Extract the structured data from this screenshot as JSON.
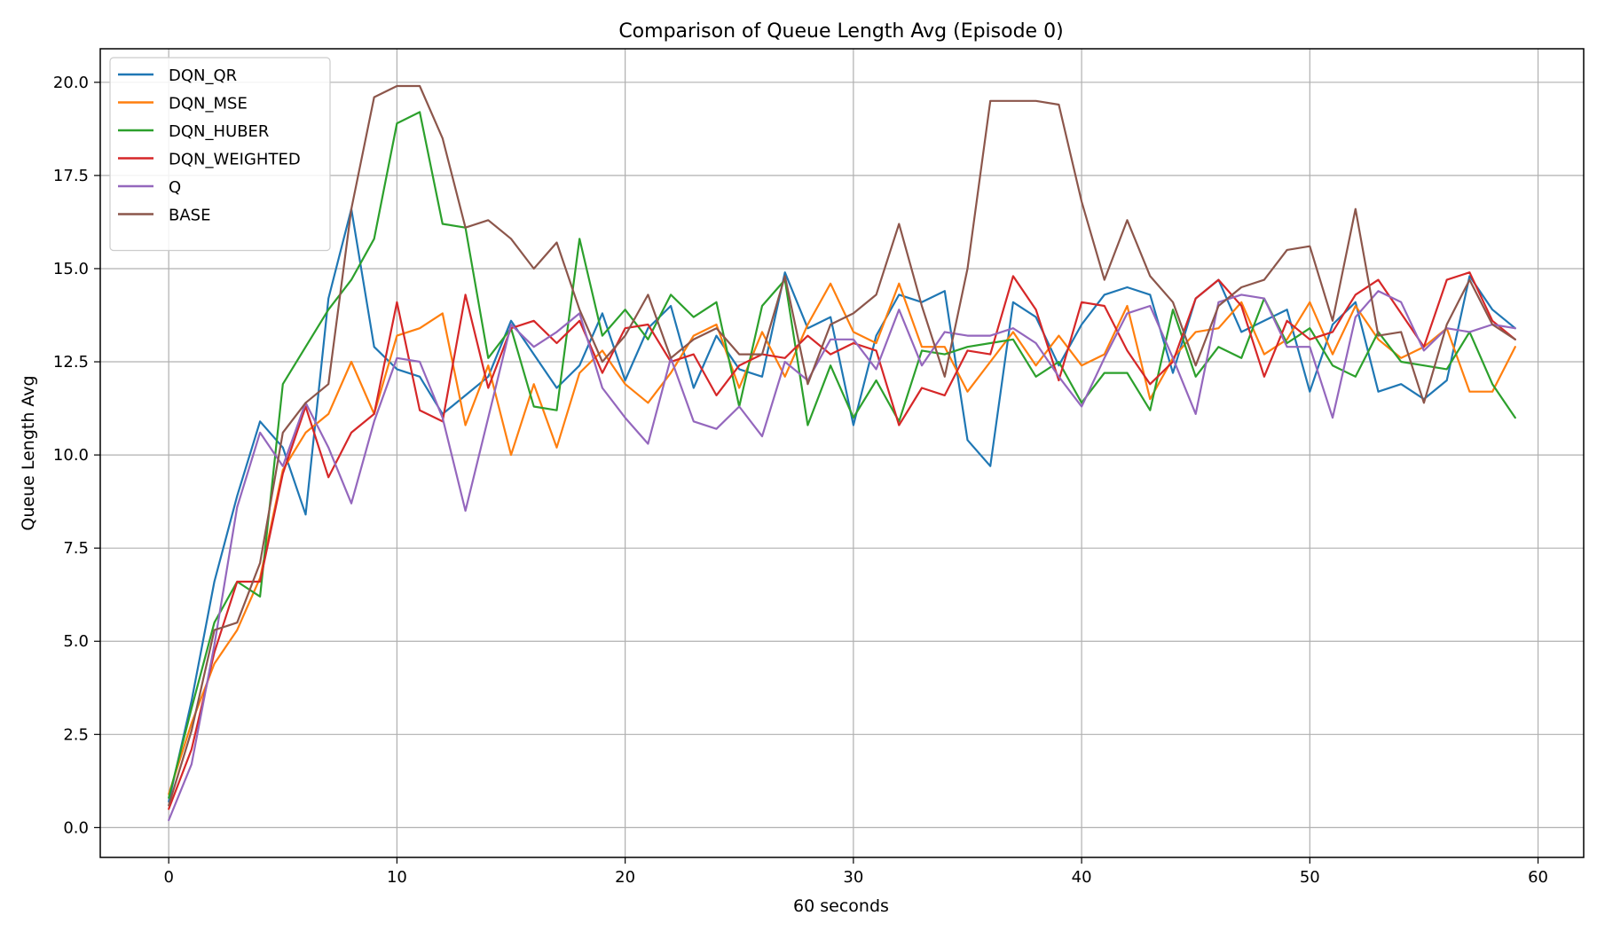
{
  "chart_data": {
    "type": "line",
    "title": "Comparison of Queue Length Avg (Episode 0)",
    "xlabel": "60 seconds",
    "ylabel": "Queue Length Avg",
    "xlim": [
      -3,
      62
    ],
    "ylim": [
      -0.8,
      20.9
    ],
    "xticks": [
      0,
      10,
      20,
      30,
      40,
      50,
      60
    ],
    "yticks": [
      0.0,
      2.5,
      5.0,
      7.5,
      10.0,
      12.5,
      15.0,
      17.5,
      20.0
    ],
    "ytick_labels": [
      "0.0",
      "2.5",
      "5.0",
      "7.5",
      "10.0",
      "12.5",
      "15.0",
      "17.5",
      "20.0"
    ],
    "grid": true,
    "legend_position": "upper-left",
    "x": [
      0,
      1,
      2,
      3,
      4,
      5,
      6,
      7,
      8,
      9,
      10,
      11,
      12,
      13,
      14,
      15,
      16,
      17,
      18,
      19,
      20,
      21,
      22,
      23,
      24,
      25,
      26,
      27,
      28,
      29,
      30,
      31,
      32,
      33,
      34,
      35,
      36,
      37,
      38,
      39,
      40,
      41,
      42,
      43,
      44,
      45,
      46,
      47,
      48,
      49,
      50,
      51,
      52,
      53,
      54,
      55,
      56,
      57,
      58,
      59
    ],
    "series": [
      {
        "name": "DQN_QR",
        "color": "#1f77b4",
        "values": [
          0.7,
          3.4,
          6.6,
          8.9,
          10.9,
          10.2,
          8.4,
          14.2,
          16.6,
          12.9,
          12.3,
          12.1,
          11.1,
          11.6,
          12.1,
          13.6,
          12.7,
          11.8,
          12.4,
          13.8,
          12.0,
          13.4,
          14.0,
          11.8,
          13.2,
          12.3,
          12.1,
          14.9,
          13.4,
          13.7,
          10.8,
          13.2,
          14.3,
          14.1,
          14.4,
          10.4,
          9.7,
          14.1,
          13.7,
          12.4,
          13.5,
          14.3,
          14.5,
          14.3,
          12.2,
          14.2,
          14.7,
          13.3,
          13.6,
          13.9,
          11.7,
          13.5,
          14.1,
          11.7,
          11.9,
          11.5,
          12.0,
          14.8,
          13.9,
          13.4
        ]
      },
      {
        "name": "DQN_MSE",
        "color": "#ff7f0e",
        "values": [
          0.9,
          2.8,
          4.4,
          5.3,
          6.7,
          9.6,
          10.6,
          11.1,
          12.5,
          11.1,
          13.2,
          13.4,
          13.8,
          10.8,
          12.4,
          10.0,
          11.9,
          10.2,
          12.2,
          12.8,
          11.9,
          11.4,
          12.2,
          13.2,
          13.5,
          11.8,
          13.3,
          12.1,
          13.5,
          14.6,
          13.3,
          13.0,
          14.6,
          12.9,
          12.9,
          11.7,
          12.5,
          13.3,
          12.4,
          13.2,
          12.4,
          12.7,
          14.0,
          11.5,
          12.6,
          13.3,
          13.4,
          14.1,
          12.7,
          13.1,
          14.1,
          12.7,
          14.0,
          13.1,
          12.6,
          12.9,
          13.4,
          11.7,
          11.7,
          12.9
        ]
      },
      {
        "name": "DQN_HUBER",
        "color": "#2ca02c",
        "values": [
          0.8,
          3.2,
          5.5,
          6.6,
          6.2,
          11.9,
          12.9,
          13.9,
          14.7,
          15.8,
          18.9,
          19.2,
          16.2,
          16.1,
          12.6,
          13.4,
          11.3,
          11.2,
          15.8,
          13.2,
          13.9,
          13.1,
          14.3,
          13.7,
          14.1,
          11.3,
          14.0,
          14.7,
          10.8,
          12.4,
          11.0,
          12.0,
          10.9,
          12.8,
          12.7,
          12.9,
          13.0,
          13.1,
          12.1,
          12.5,
          11.4,
          12.2,
          12.2,
          11.2,
          13.9,
          12.1,
          12.9,
          12.6,
          14.2,
          13.0,
          13.4,
          12.4,
          12.1,
          13.3,
          12.5,
          12.4,
          12.3,
          13.3,
          11.9,
          11.0
        ]
      },
      {
        "name": "DQN_WEIGHTED",
        "color": "#d62728",
        "values": [
          0.5,
          2.1,
          4.7,
          6.6,
          6.6,
          9.5,
          11.3,
          9.4,
          10.6,
          11.1,
          14.1,
          11.2,
          10.9,
          14.3,
          11.8,
          13.4,
          13.6,
          13.0,
          13.6,
          12.2,
          13.4,
          13.5,
          12.5,
          12.7,
          11.6,
          12.4,
          12.7,
          12.6,
          13.2,
          12.7,
          13.0,
          12.8,
          10.8,
          11.8,
          11.6,
          12.8,
          12.7,
          14.8,
          13.9,
          12.0,
          14.1,
          14.0,
          12.8,
          11.9,
          12.5,
          14.2,
          14.7,
          14.0,
          12.1,
          13.6,
          13.1,
          13.3,
          14.3,
          14.7,
          13.8,
          12.9,
          14.7,
          14.9,
          13.6,
          13.1
        ]
      },
      {
        "name": "Q",
        "color": "#9467bd",
        "values": [
          0.2,
          1.7,
          4.9,
          8.6,
          10.6,
          9.7,
          11.4,
          10.2,
          8.7,
          10.9,
          12.6,
          12.5,
          11.0,
          8.5,
          11.0,
          13.5,
          12.9,
          13.3,
          13.8,
          11.8,
          11.0,
          10.3,
          12.6,
          10.9,
          10.7,
          11.3,
          10.5,
          12.5,
          12.0,
          13.1,
          13.1,
          12.3,
          13.9,
          12.4,
          13.3,
          13.2,
          13.2,
          13.4,
          13.0,
          12.1,
          11.3,
          12.6,
          13.8,
          14.0,
          12.6,
          11.1,
          14.1,
          14.3,
          14.2,
          12.9,
          12.9,
          11.0,
          13.7,
          14.4,
          14.1,
          12.8,
          13.4,
          13.3,
          13.5,
          13.4
        ]
      },
      {
        "name": "BASE",
        "color": "#8c564b",
        "values": [
          0.6,
          2.6,
          5.3,
          5.5,
          7.1,
          10.6,
          11.4,
          11.9,
          16.6,
          19.6,
          19.9,
          19.9,
          18.5,
          16.1,
          16.3,
          15.8,
          15.0,
          15.7,
          13.9,
          12.5,
          13.2,
          14.3,
          12.6,
          13.1,
          13.4,
          12.7,
          12.7,
          14.8,
          11.9,
          13.5,
          13.8,
          14.3,
          16.2,
          14.0,
          12.1,
          15.0,
          19.5,
          19.5,
          19.5,
          19.4,
          16.8,
          14.7,
          16.3,
          14.8,
          14.1,
          12.4,
          14.0,
          14.5,
          14.7,
          15.5,
          15.6,
          13.6,
          16.6,
          13.2,
          13.3,
          11.4,
          13.5,
          14.7,
          13.5,
          13.1
        ]
      }
    ]
  }
}
